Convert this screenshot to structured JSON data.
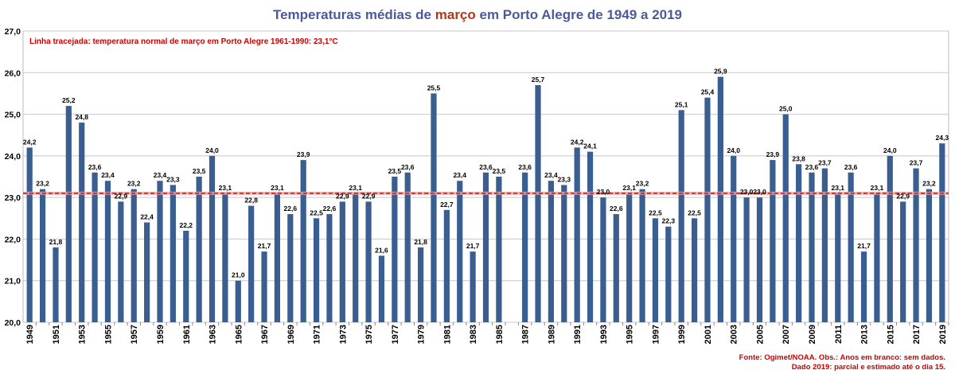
{
  "chart_data": {
    "type": "bar",
    "title_parts": [
      "Temperaturas médias de ",
      "março",
      " em Porto Alegre de 1949 a 2019"
    ],
    "colors": {
      "bar": "#3b5e91",
      "title": "#4a5a9a",
      "title_highlight": "#b03a1a",
      "reference": "#cc2222",
      "note": "#cc0000"
    },
    "ylim": [
      20.0,
      27.0
    ],
    "yticks": [
      "20,0",
      "21,0",
      "22,0",
      "23,0",
      "24,0",
      "25,0",
      "26,0",
      "27,0"
    ],
    "reference_line": {
      "value": 23.1,
      "style": "dashed",
      "label": "Linha tracejada: temperatura normal de março em Porto Alegre 1961-1990: 23,1°C"
    },
    "grid": true,
    "categories": [
      1949,
      1950,
      1951,
      1952,
      1953,
      1954,
      1955,
      1956,
      1957,
      1958,
      1959,
      1960,
      1961,
      1962,
      1963,
      1964,
      1965,
      1966,
      1967,
      1968,
      1969,
      1970,
      1971,
      1972,
      1973,
      1974,
      1975,
      1976,
      1977,
      1978,
      1979,
      1980,
      1981,
      1982,
      1983,
      1984,
      1985,
      1986,
      1987,
      1988,
      1989,
      1990,
      1991,
      1992,
      1993,
      1994,
      1995,
      1996,
      1997,
      1998,
      1999,
      2000,
      2001,
      2002,
      2003,
      2004,
      2005,
      2006,
      2007,
      2008,
      2009,
      2010,
      2011,
      2012,
      2013,
      2014,
      2015,
      2016,
      2017,
      2018,
      2019
    ],
    "values": [
      24.2,
      23.2,
      21.8,
      25.2,
      24.8,
      23.6,
      23.4,
      22.9,
      23.2,
      22.4,
      23.4,
      23.3,
      22.2,
      23.5,
      24.0,
      23.1,
      21.0,
      22.8,
      21.7,
      23.1,
      22.6,
      23.9,
      22.5,
      22.6,
      22.9,
      23.1,
      22.9,
      21.6,
      23.5,
      23.6,
      21.8,
      25.5,
      22.7,
      23.4,
      21.7,
      23.6,
      23.5,
      null,
      23.6,
      25.7,
      23.4,
      23.3,
      24.2,
      24.1,
      23.0,
      22.6,
      23.1,
      23.2,
      22.5,
      22.3,
      25.1,
      22.5,
      25.4,
      25.9,
      24.0,
      23.0,
      23.0,
      23.9,
      25.0,
      23.8,
      23.6,
      23.7,
      23.1,
      23.6,
      21.7,
      23.1,
      24.0,
      22.9,
      23.7,
      23.2,
      24.3
    ],
    "value_labels": [
      "24,2",
      "23,2",
      "21,8",
      "25,2",
      "24,8",
      "23,6",
      "23,4",
      "22,9",
      "23,2",
      "22,4",
      "23,4",
      "23,3",
      "22,2",
      "23,5",
      "24,0",
      "23,1",
      "21,0",
      "22,8",
      "21,7",
      "23,1",
      "22,6",
      "23,9",
      "22,5",
      "22,6",
      "22,9",
      "23,1",
      "22,9",
      "21,6",
      "23,5",
      "23,6",
      "21,8",
      "25,5",
      "22,7",
      "23,4",
      "21,7",
      "23,6",
      "23,5",
      "",
      "23,6",
      "25,7",
      "23,4",
      "23,3",
      "24,2",
      "24,1",
      "23,0",
      "22,6",
      "23,1",
      "23,2",
      "22,5",
      "22,3",
      "25,1",
      "22,5",
      "25,4",
      "25,9",
      "24,0",
      "23,0",
      "23,0",
      "23,9",
      "25,0",
      "23,8",
      "23,6",
      "23,7",
      "23,1",
      "23,6",
      "21,7",
      "23,1",
      "24,0",
      "22,9",
      "23,7",
      "23,2",
      "24,3"
    ],
    "source_lines": [
      "Fonte: Ogimet/NOAA. Obs.: Anos em branco: sem dados.",
      "Dado 2019: parcial e estimado até o dia 15."
    ]
  }
}
